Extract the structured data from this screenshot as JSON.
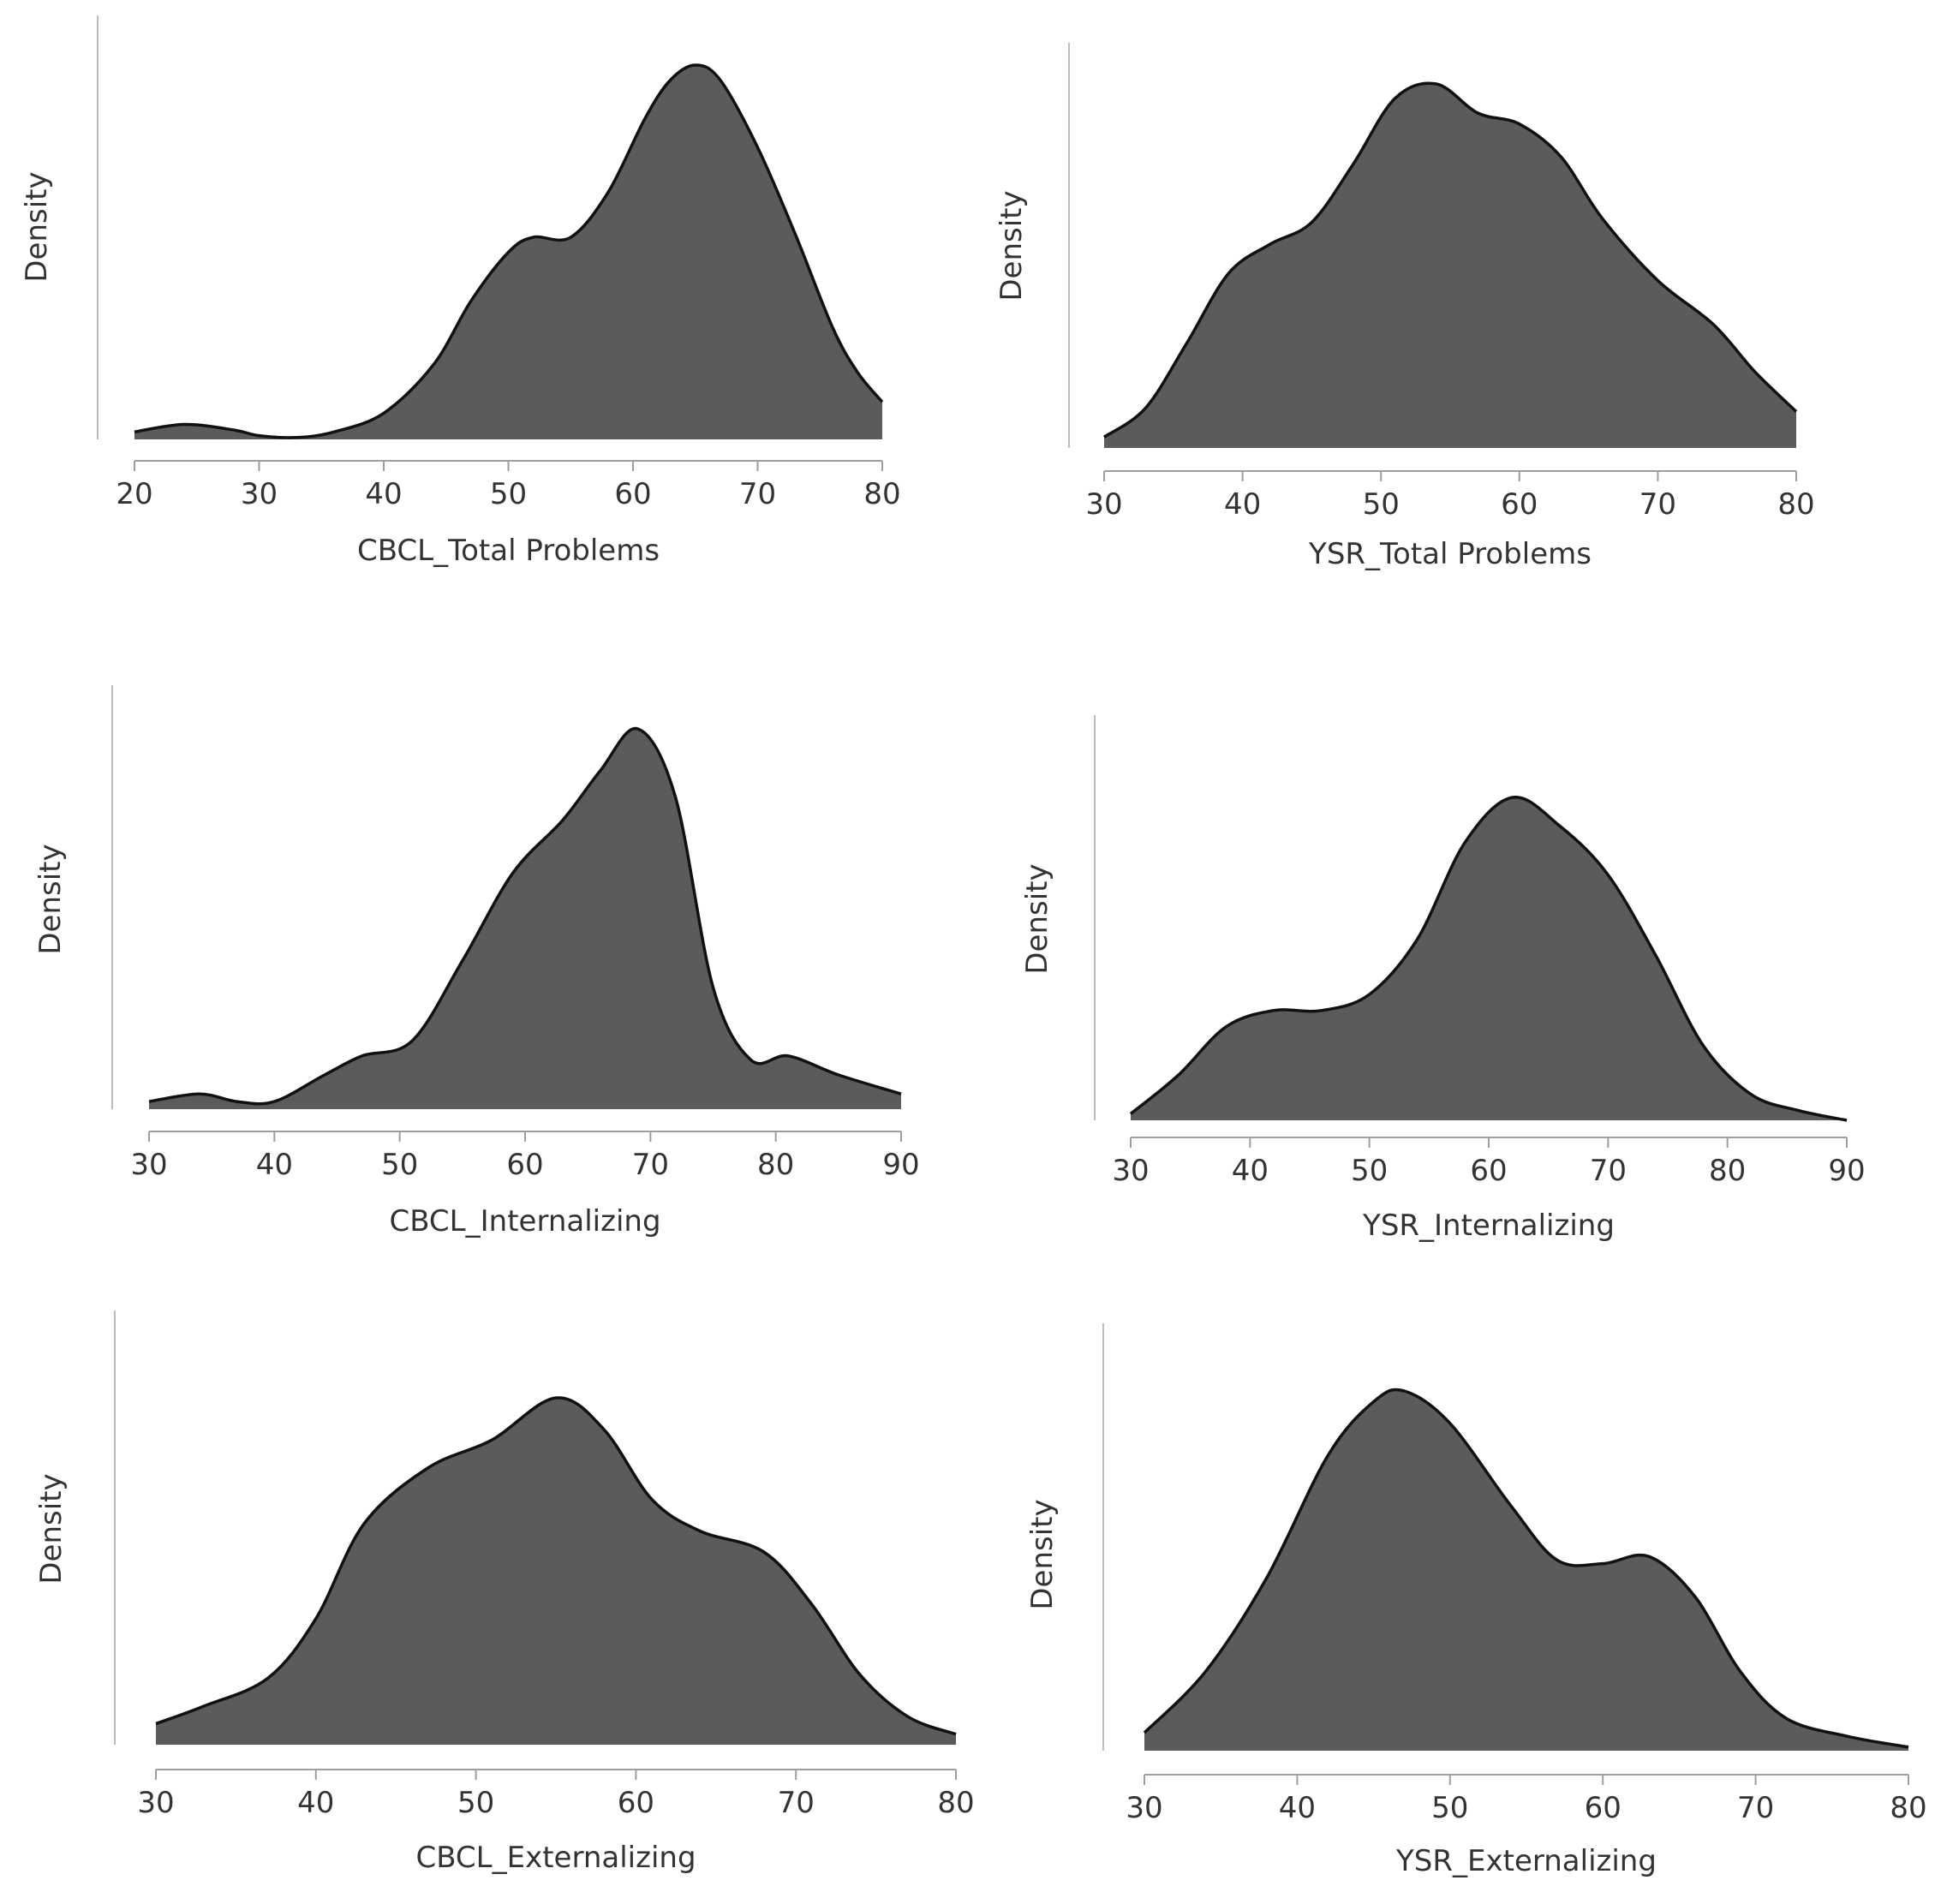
{
  "chart_data": [
    {
      "type": "area",
      "title": "",
      "xlabel": "CBCL_Total Problems",
      "ylabel": "Density",
      "xlim": [
        20,
        80
      ],
      "xticks": [
        20,
        30,
        40,
        50,
        60,
        70,
        80
      ],
      "ylim": [
        0,
        1
      ],
      "grid": false,
      "fill_color": "#5b5b5b",
      "line_color": "#111111",
      "x": [
        20,
        24,
        28,
        30,
        33,
        36,
        40,
        44,
        47,
        50,
        52,
        55,
        58,
        61,
        63,
        65,
        67,
        70,
        73,
        76,
        78,
        80
      ],
      "y": [
        0.02,
        0.04,
        0.025,
        0.01,
        0.005,
        0.02,
        0.07,
        0.2,
        0.37,
        0.5,
        0.54,
        0.54,
        0.66,
        0.86,
        0.96,
        1.0,
        0.96,
        0.78,
        0.55,
        0.3,
        0.18,
        0.1
      ]
    },
    {
      "type": "area",
      "title": "",
      "xlabel": "YSR_Total Problems",
      "ylabel": "Density",
      "xlim": [
        30,
        80
      ],
      "xticks": [
        30,
        40,
        50,
        60,
        70,
        80
      ],
      "ylim": [
        0,
        1
      ],
      "grid": false,
      "fill_color": "#5b5b5b",
      "line_color": "#111111",
      "x": [
        30,
        33,
        36,
        39,
        42,
        45,
        48,
        51,
        54,
        57,
        60,
        63,
        66,
        70,
        74,
        77,
        80
      ],
      "y": [
        0.03,
        0.11,
        0.29,
        0.48,
        0.56,
        0.62,
        0.78,
        0.96,
        1.0,
        0.92,
        0.89,
        0.8,
        0.63,
        0.46,
        0.34,
        0.21,
        0.1
      ]
    },
    {
      "type": "area",
      "title": "",
      "xlabel": "CBCL_Internalizing",
      "ylabel": "Density",
      "xlim": [
        30,
        90
      ],
      "xticks": [
        30,
        40,
        50,
        60,
        70,
        80,
        90
      ],
      "ylim": [
        0,
        1
      ],
      "grid": false,
      "fill_color": "#5b5b5b",
      "line_color": "#111111",
      "x": [
        30,
        34,
        37,
        40,
        44,
        47,
        51,
        55,
        59,
        63,
        66,
        69,
        72,
        75,
        78,
        81,
        85,
        90
      ],
      "y": [
        0.02,
        0.04,
        0.02,
        0.02,
        0.09,
        0.14,
        0.18,
        0.39,
        0.62,
        0.76,
        0.89,
        1.0,
        0.82,
        0.32,
        0.13,
        0.14,
        0.09,
        0.04
      ]
    },
    {
      "type": "area",
      "title": "",
      "xlabel": "YSR_Internalizing",
      "ylabel": "Density",
      "xlim": [
        30,
        90
      ],
      "xticks": [
        30,
        40,
        50,
        60,
        70,
        80,
        90
      ],
      "ylim": [
        0,
        1
      ],
      "grid": false,
      "fill_color": "#5b5b5b",
      "line_color": "#111111",
      "x": [
        30,
        34,
        38,
        42,
        46,
        50,
        54,
        58,
        62,
        66,
        70,
        74,
        78,
        82,
        86,
        90
      ],
      "y": [
        0.02,
        0.14,
        0.29,
        0.34,
        0.34,
        0.39,
        0.56,
        0.86,
        1.0,
        0.91,
        0.76,
        0.51,
        0.23,
        0.08,
        0.03,
        0.0
      ]
    },
    {
      "type": "area",
      "title": "",
      "xlabel": "CBCL_Externalizing",
      "ylabel": "Density",
      "xlim": [
        30,
        80
      ],
      "xticks": [
        30,
        40,
        50,
        60,
        70,
        80
      ],
      "ylim": [
        0,
        1
      ],
      "grid": false,
      "fill_color": "#5b5b5b",
      "line_color": "#111111",
      "x": [
        30,
        33,
        37,
        40,
        43,
        47,
        51,
        55,
        58,
        61,
        64,
        68,
        71,
        74,
        77,
        80
      ],
      "y": [
        0.06,
        0.11,
        0.19,
        0.36,
        0.63,
        0.79,
        0.87,
        0.99,
        0.9,
        0.7,
        0.61,
        0.55,
        0.4,
        0.2,
        0.08,
        0.03
      ]
    },
    {
      "type": "area",
      "title": "",
      "xlabel": "YSR_Externalizing",
      "ylabel": "Density",
      "xlim": [
        30,
        80
      ],
      "xticks": [
        30,
        40,
        50,
        60,
        70,
        80
      ],
      "ylim": [
        0,
        1
      ],
      "grid": false,
      "fill_color": "#5b5b5b",
      "line_color": "#111111",
      "x": [
        30,
        34,
        38,
        42,
        45,
        47,
        50,
        54,
        57,
        60,
        63,
        66,
        69,
        72,
        76,
        80
      ],
      "y": [
        0.05,
        0.22,
        0.48,
        0.82,
        0.97,
        1.0,
        0.91,
        0.68,
        0.53,
        0.52,
        0.54,
        0.43,
        0.22,
        0.09,
        0.04,
        0.01
      ]
    }
  ]
}
